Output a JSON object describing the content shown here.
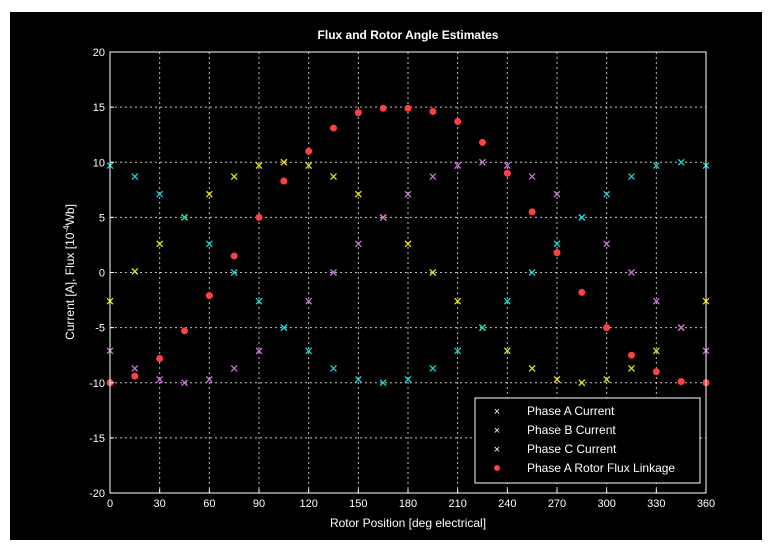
{
  "chart_data": {
    "type": "scatter",
    "title": "Flux and Rotor Angle Estimates",
    "xlabel": "Rotor Position [deg electrical]",
    "ylabel": "Current [A], Flux [10^-4 Wb]",
    "ylabel_parts": {
      "pre": "Current [A], Flux [10",
      "sup": "-4",
      "post": "Wb]"
    },
    "xlim": [
      0,
      360
    ],
    "ylim": [
      -20,
      20
    ],
    "xticks": [
      "0",
      "30",
      "60",
      "90",
      "120",
      "150",
      "180",
      "210",
      "240",
      "270",
      "300",
      "330",
      "360"
    ],
    "yticks": [
      "-20",
      "-15",
      "-10",
      "-5",
      "0",
      "5",
      "10",
      "15",
      "20"
    ],
    "grid": true,
    "legend_position": "bottom-right",
    "colors": {
      "background": "#000000",
      "axes": "#ffffff",
      "grid": "#ffffff"
    },
    "series": [
      {
        "name": "Phase A Current",
        "marker": "x",
        "color": "#e8e800",
        "x": [
          0,
          15,
          30,
          45,
          60,
          75,
          90,
          105,
          120,
          135,
          150,
          165,
          180,
          195,
          210,
          225,
          240,
          255,
          270,
          285,
          300,
          315,
          330,
          345,
          360
        ],
        "y": [
          -2.6,
          0.1,
          2.6,
          5.0,
          7.1,
          8.7,
          9.7,
          10.0,
          9.7,
          8.7,
          7.1,
          5.0,
          2.6,
          0.0,
          -2.6,
          -5.0,
          -7.1,
          -8.7,
          -9.7,
          -10.0,
          -9.7,
          -8.7,
          -7.1,
          -5.0,
          -2.6
        ]
      },
      {
        "name": "Phase B Current",
        "marker": "x",
        "color": "#d070e0",
        "x": [
          0,
          15,
          30,
          45,
          60,
          75,
          90,
          105,
          120,
          135,
          150,
          165,
          180,
          195,
          210,
          225,
          240,
          255,
          270,
          285,
          300,
          315,
          330,
          345,
          360
        ],
        "y": [
          -7.1,
          -8.7,
          -9.7,
          -10.0,
          -9.7,
          -8.7,
          -7.1,
          -5.0,
          -2.6,
          0.0,
          2.6,
          5.0,
          7.1,
          8.7,
          9.7,
          10.0,
          9.7,
          8.7,
          7.1,
          5.0,
          2.6,
          0.0,
          -2.6,
          -5.0,
          -7.1
        ]
      },
      {
        "name": "Phase C Current",
        "marker": "x",
        "color": "#10d8d8",
        "x": [
          0,
          15,
          30,
          45,
          60,
          75,
          90,
          105,
          120,
          135,
          150,
          165,
          180,
          195,
          210,
          225,
          240,
          255,
          270,
          285,
          300,
          315,
          330,
          345,
          360
        ],
        "y": [
          9.7,
          8.7,
          7.1,
          5.0,
          2.6,
          0.0,
          -2.6,
          -5.0,
          -7.1,
          -8.7,
          -9.7,
          -10.0,
          -9.7,
          -8.7,
          -7.1,
          -5.0,
          -2.6,
          0.0,
          2.6,
          5.0,
          7.1,
          8.7,
          9.7,
          10.0,
          9.7
        ]
      },
      {
        "name": "Phase A Rotor Flux Linkage",
        "marker": "dot",
        "color": "#ff4040",
        "x": [
          0,
          15,
          30,
          45,
          60,
          75,
          90,
          105,
          120,
          135,
          150,
          165,
          180,
          195,
          210,
          225,
          240,
          255,
          270,
          285,
          300,
          315,
          330,
          345,
          360
        ],
        "y": [
          -10.0,
          -9.4,
          -7.8,
          -5.3,
          -2.1,
          1.5,
          5.0,
          8.3,
          11.0,
          13.1,
          14.5,
          14.9,
          14.9,
          14.6,
          13.7,
          11.8,
          9.0,
          5.5,
          1.8,
          -1.8,
          -5.0,
          -7.5,
          -9.0,
          -9.9,
          -10.0
        ]
      }
    ]
  }
}
